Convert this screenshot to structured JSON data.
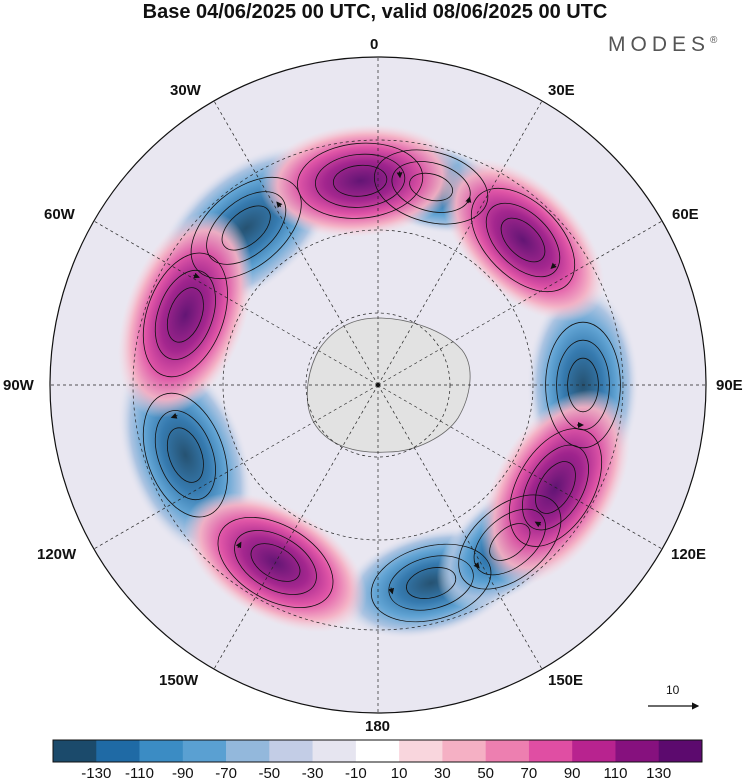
{
  "title": "Base 04/06/2025 00 UTC, valid 08/06/2025 00 UTC",
  "brand": "MODES",
  "brand_mark": "®",
  "longitude_labels": {
    "lon0": "0",
    "lon30e": "30E",
    "lon60e": "60E",
    "lon90e": "90E",
    "lon120e": "120E",
    "lon150e": "150E",
    "lon180": "180",
    "lon150w": "150W",
    "lon120w": "120W",
    "lon90w": "90W",
    "lon60w": "60W",
    "lon30w": "30W"
  },
  "vector_scale_label": "10",
  "colorbar": {
    "colors": [
      "#1b4a6b",
      "#1f6aa5",
      "#3b8cc4",
      "#5aa0d2",
      "#93b8dc",
      "#c3cde6",
      "#e6e5f0",
      "#ffffff",
      "#f9d6dd",
      "#f5b0c4",
      "#ed7fb0",
      "#e04ea3",
      "#b8238f",
      "#86117e",
      "#5c0a6e"
    ],
    "labels": [
      "-130",
      "-110",
      "-90",
      "-70",
      "-50",
      "-30",
      "-10",
      "10",
      "30",
      "50",
      "70",
      "90",
      "110",
      "130"
    ]
  },
  "map": {
    "projection": "south-polar-stereographic",
    "field_lows": [
      {
        "lon": -40,
        "strength": 130
      },
      {
        "lon": 90,
        "strength": 110
      },
      {
        "lon": -110,
        "strength": 130
      },
      {
        "lon": 15,
        "strength": 50
      },
      {
        "lon": 165,
        "strength": 90
      },
      {
        "lon": 140,
        "strength": 70
      }
    ],
    "field_highs": [
      {
        "lon": -5,
        "strength": 110
      },
      {
        "lon": 45,
        "strength": 110
      },
      {
        "lon": -70,
        "strength": 130
      },
      {
        "lon": 120,
        "strength": 130
      },
      {
        "lon": -150,
        "strength": 110
      }
    ]
  }
}
